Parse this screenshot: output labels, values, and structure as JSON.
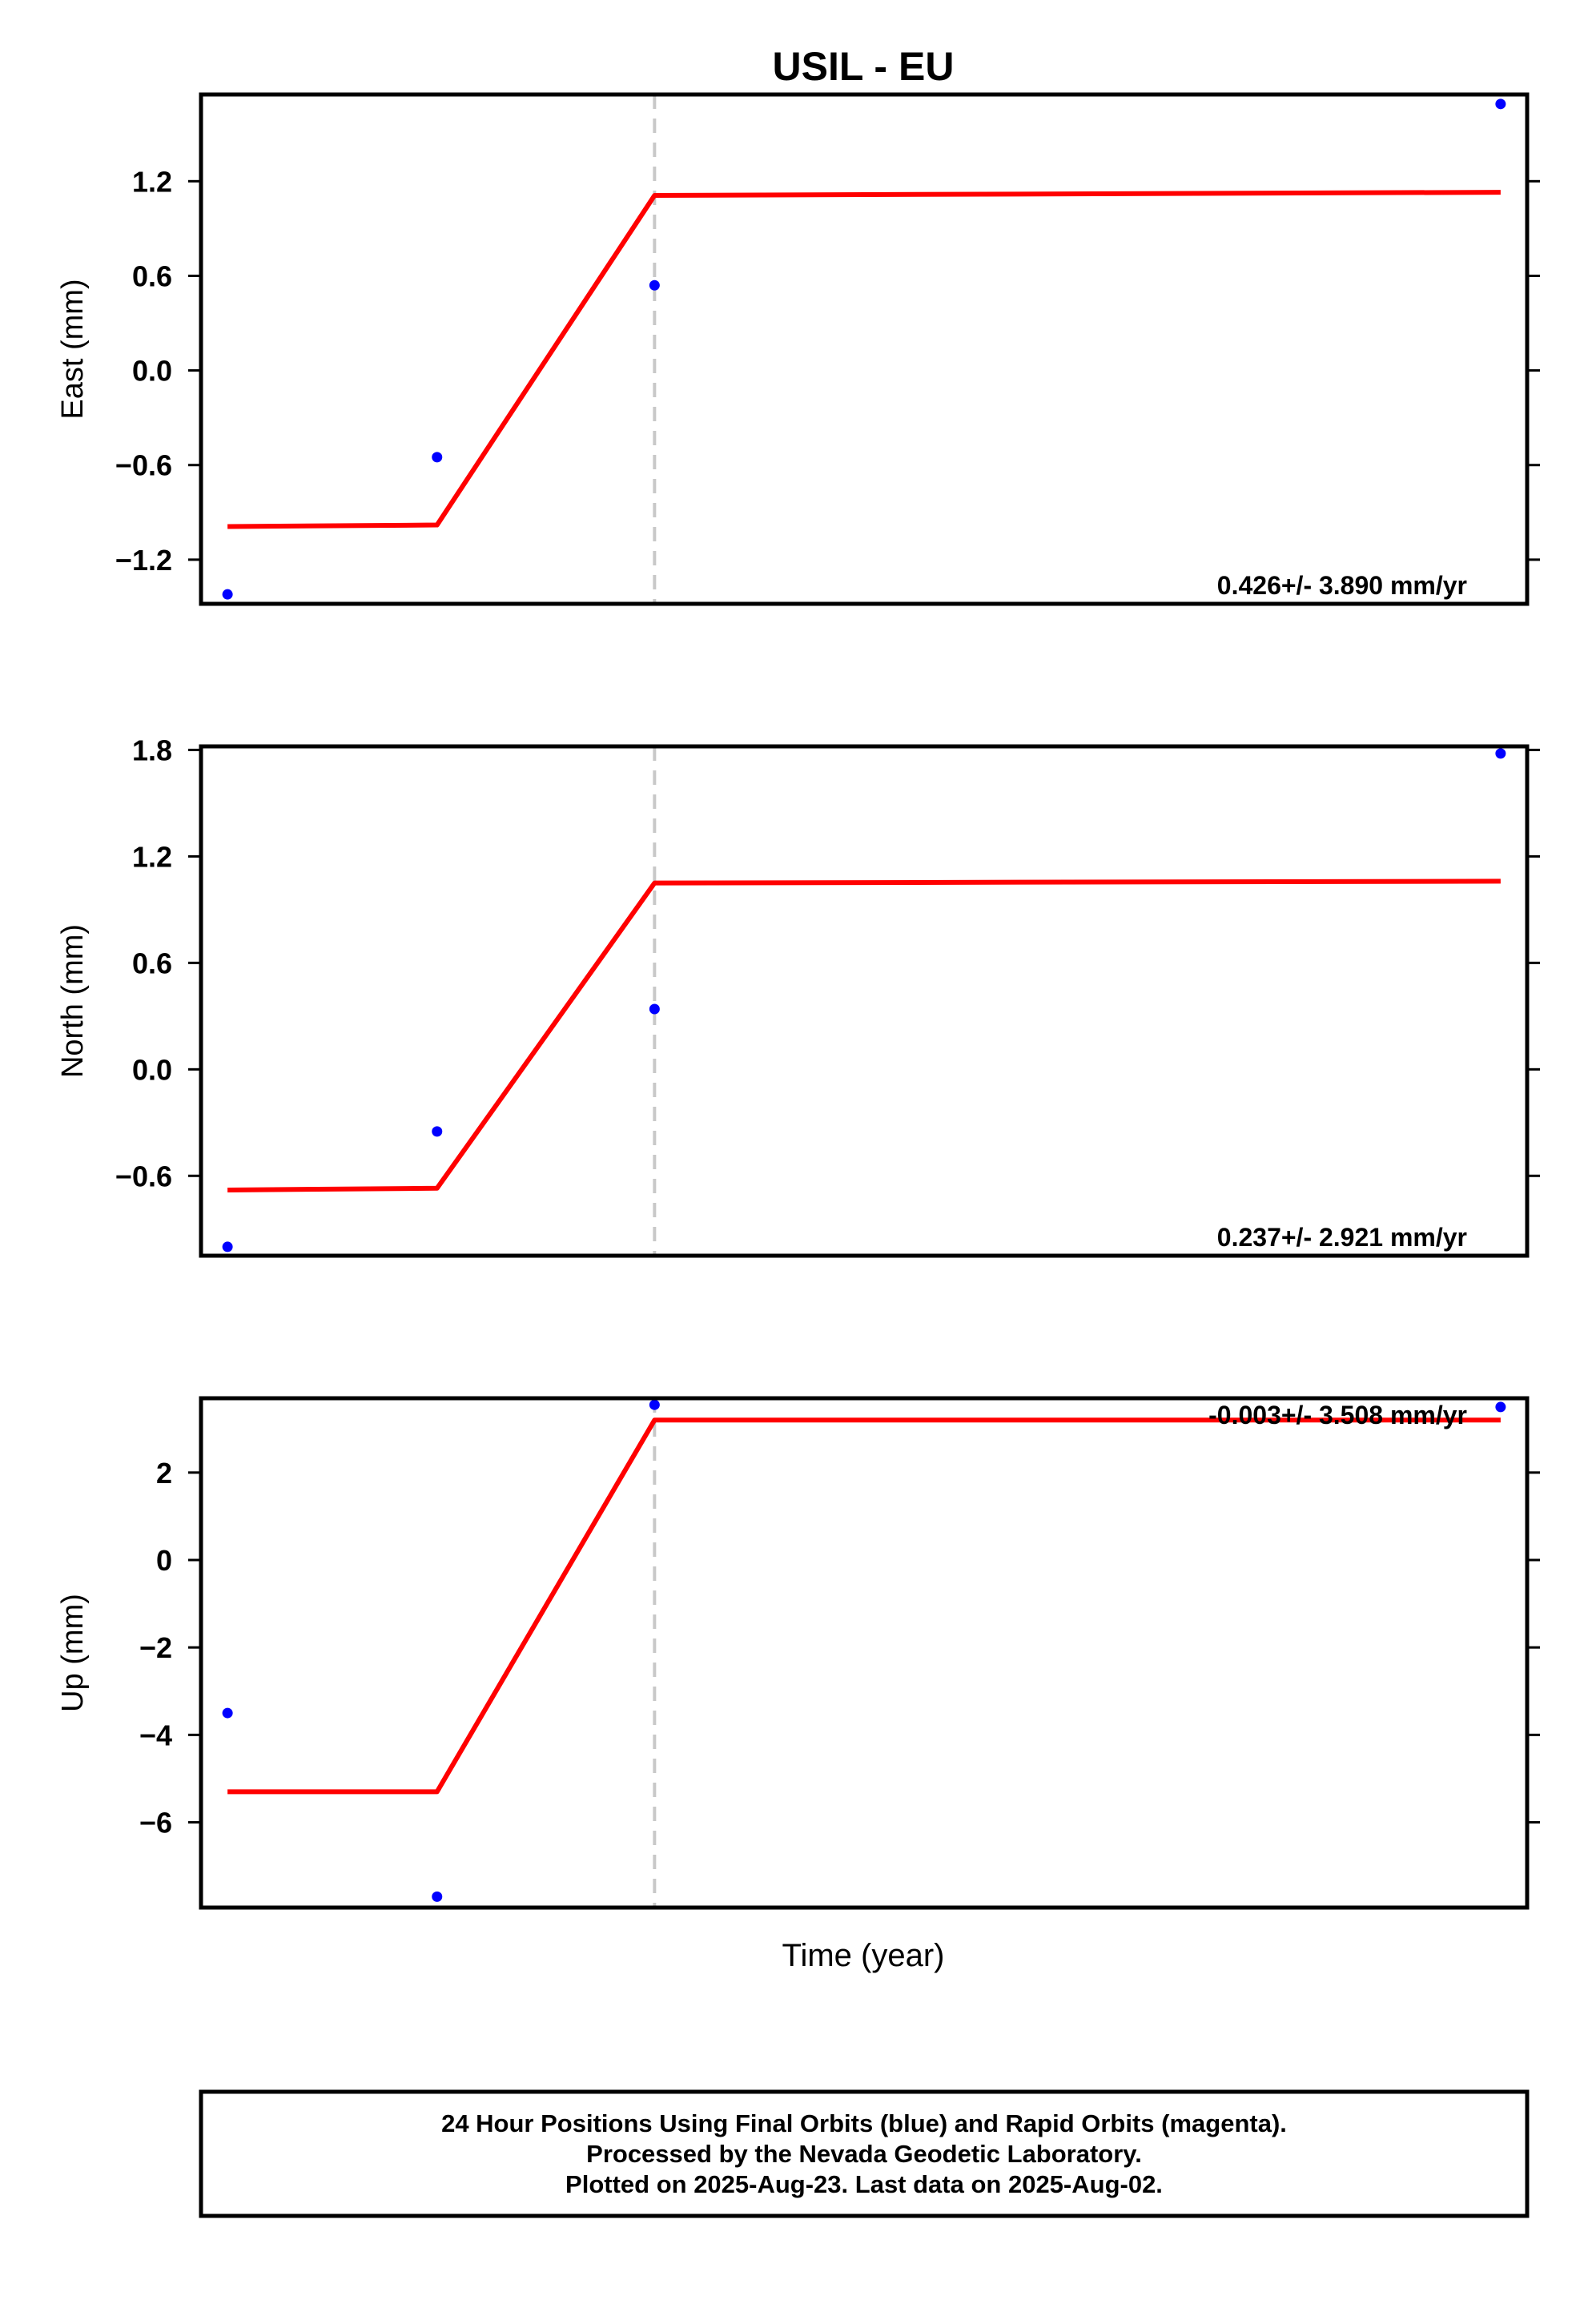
{
  "chart_data": {
    "type": "line",
    "title": "USIL - EU",
    "xlabel": "Time (year)",
    "colors": {
      "data_points": "#0000ff",
      "fit_line": "#ff0000",
      "offset_marker": "#c8c8c8",
      "frame": "#000000"
    },
    "offset_marker_index": 2,
    "panels": [
      {
        "ylabel": "East (mm)",
        "ylim": [
          -1.48,
          1.75
        ],
        "yticks": [
          "1.2",
          "0.6",
          "0.0",
          "-0.6",
          "-1.2"
        ],
        "ytick_values": [
          1.2,
          0.6,
          0.0,
          -0.6,
          -1.2
        ],
        "rate": "0.426+/- 3.890 mm/yr",
        "rate_position": "bottom-right",
        "points": [
          -1.42,
          -0.55,
          0.54,
          1.69
        ],
        "fit": [
          -0.99,
          -0.98,
          1.11,
          1.13
        ]
      },
      {
        "ylabel": "North (mm)",
        "ylim": [
          -1.05,
          1.82
        ],
        "yticks": [
          "1.8",
          "1.2",
          "0.6",
          "0.0",
          "-0.6"
        ],
        "ytick_values": [
          1.8,
          1.2,
          0.6,
          0.0,
          -0.6
        ],
        "rate": "0.237+/- 2.921 mm/yr",
        "rate_position": "bottom-right",
        "points": [
          -1.0,
          -0.35,
          0.34,
          1.78
        ],
        "fit": [
          -0.68,
          -0.67,
          1.05,
          1.06
        ]
      },
      {
        "ylabel": "Up (mm)",
        "ylim": [
          -7.95,
          3.7
        ],
        "yticks": [
          "2",
          "0",
          "-2",
          "-4",
          "-6"
        ],
        "ytick_values": [
          2,
          0,
          -2,
          -4,
          -6
        ],
        "rate": "-0.003+/- 3.508 mm/yr",
        "rate_position": "top-right",
        "points": [
          -3.5,
          -7.7,
          3.55,
          3.5
        ],
        "fit": [
          -5.3,
          -5.3,
          3.2,
          3.2
        ]
      }
    ],
    "x_positions_fraction": [
      0.02,
      0.178,
      0.342,
      0.98
    ]
  },
  "footer": {
    "line1": "24 Hour Positions Using Final Orbits (blue) and Rapid Orbits (magenta).",
    "line2": "Processed by the Nevada Geodetic Laboratory.",
    "line3": "Plotted on 2025-Aug-23. Last data on 2025-Aug-02."
  }
}
